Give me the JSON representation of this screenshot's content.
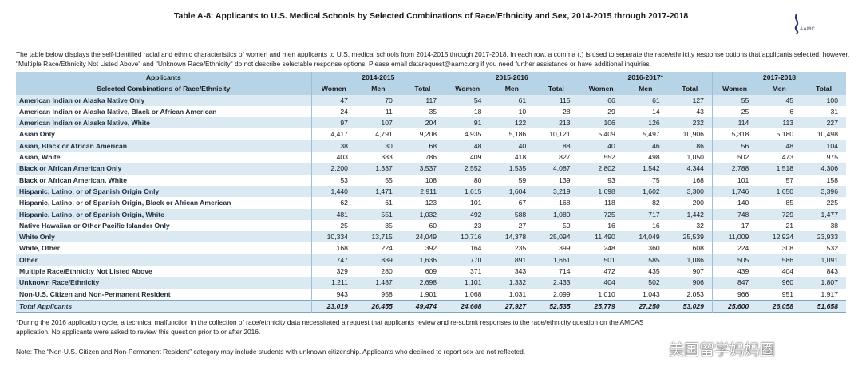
{
  "title": "Table A-8: Applicants to U.S. Medical Schools by Selected Combinations of Race/Ethnicity and Sex, 2014-2015 through 2017-2018",
  "logo": "AAMC",
  "intro": "The table below displays the self-identified racial and ethnic characteristics of women and men applicants to U.S. medical schools from 2014-2015 through 2017-2018. In each row, a comma (,) is used to separate the race/ethnicity response options that applicants selected; however, \"Multiple Race/Ethnicity Not Listed Above\" and \"Unknown Race/Ethnicity\" do not describe selectable response options. Please email datarequest@aamc.org if you need further assistance or have additional inquiries.",
  "table": {
    "header_top": "Applicants",
    "header_label": "Selected Combinations of Race/Ethnicity",
    "years": [
      "2014-2015",
      "2015-2016",
      "2016-2017*",
      "2017-2018"
    ],
    "subheaders": [
      "Women",
      "Men",
      "Total"
    ],
    "rows": [
      [
        "American Indian or Alaska Native Only",
        "47",
        "70",
        "117",
        "54",
        "61",
        "115",
        "66",
        "61",
        "127",
        "55",
        "45",
        "100"
      ],
      [
        "American Indian or Alaska Native, Black or African American",
        "24",
        "11",
        "35",
        "18",
        "10",
        "28",
        "29",
        "14",
        "43",
        "25",
        "6",
        "31"
      ],
      [
        "American Indian or Alaska Native, White",
        "97",
        "107",
        "204",
        "91",
        "122",
        "213",
        "106",
        "126",
        "232",
        "114",
        "113",
        "227"
      ],
      [
        "Asian Only",
        "4,417",
        "4,791",
        "9,208",
        "4,935",
        "5,186",
        "10,121",
        "5,409",
        "5,497",
        "10,906",
        "5,318",
        "5,180",
        "10,498"
      ],
      [
        "Asian, Black or African American",
        "38",
        "30",
        "68",
        "48",
        "40",
        "88",
        "40",
        "46",
        "86",
        "56",
        "48",
        "104"
      ],
      [
        "Asian, White",
        "403",
        "383",
        "786",
        "409",
        "418",
        "827",
        "552",
        "498",
        "1,050",
        "502",
        "473",
        "975"
      ],
      [
        "Black or African American Only",
        "2,200",
        "1,337",
        "3,537",
        "2,552",
        "1,535",
        "4,087",
        "2,802",
        "1,542",
        "4,344",
        "2,788",
        "1,518",
        "4,306"
      ],
      [
        "Black or African American, White",
        "53",
        "55",
        "108",
        "80",
        "59",
        "139",
        "93",
        "75",
        "168",
        "101",
        "57",
        "158"
      ],
      [
        "Hispanic, Latino, or of Spanish Origin Only",
        "1,440",
        "1,471",
        "2,911",
        "1,615",
        "1,604",
        "3,219",
        "1,698",
        "1,602",
        "3,300",
        "1,746",
        "1,650",
        "3,396"
      ],
      [
        "Hispanic, Latino, or of Spanish Origin, Black or African American",
        "62",
        "61",
        "123",
        "101",
        "67",
        "168",
        "118",
        "82",
        "200",
        "140",
        "85",
        "225"
      ],
      [
        "Hispanic, Latino, or of Spanish Origin, White",
        "481",
        "551",
        "1,032",
        "492",
        "588",
        "1,080",
        "725",
        "717",
        "1,442",
        "748",
        "729",
        "1,477"
      ],
      [
        "Native Hawaiian or Other Pacific Islander Only",
        "25",
        "35",
        "60",
        "23",
        "27",
        "50",
        "16",
        "16",
        "32",
        "17",
        "21",
        "38"
      ],
      [
        "White Only",
        "10,334",
        "13,715",
        "24,049",
        "10,716",
        "14,378",
        "25,094",
        "11,490",
        "14,049",
        "25,539",
        "11,009",
        "12,924",
        "23,933"
      ],
      [
        "White, Other",
        "168",
        "224",
        "392",
        "164",
        "235",
        "399",
        "248",
        "360",
        "608",
        "224",
        "308",
        "532"
      ],
      [
        "Other",
        "747",
        "889",
        "1,636",
        "770",
        "891",
        "1,661",
        "501",
        "585",
        "1,086",
        "505",
        "586",
        "1,091"
      ],
      [
        "Multiple Race/Ethnicity Not Listed Above",
        "329",
        "280",
        "609",
        "371",
        "343",
        "714",
        "472",
        "435",
        "907",
        "439",
        "404",
        "843"
      ],
      [
        "Unknown Race/Ethnicity",
        "1,211",
        "1,487",
        "2,698",
        "1,101",
        "1,332",
        "2,433",
        "404",
        "502",
        "906",
        "847",
        "960",
        "1,807"
      ],
      [
        "Non-U.S. Citizen and Non-Permanent Resident",
        "943",
        "958",
        "1,901",
        "1,068",
        "1,031",
        "2,099",
        "1,010",
        "1,043",
        "2,053",
        "966",
        "951",
        "1,917"
      ]
    ],
    "total": [
      "Total Applicants",
      "23,019",
      "26,455",
      "49,474",
      "24,608",
      "27,927",
      "52,535",
      "25,779",
      "27,250",
      "53,029",
      "25,600",
      "26,058",
      "51,658"
    ]
  },
  "footnote": "*During the 2016 application cycle, a technical malfunction in the collection of race/ethnicity data necessitated a request that applicants review and re-submit responses to the race/ethnicity question on the AMCAS application. No applicants were asked to review this question prior to or after 2016.",
  "note": "Note: The “Non-U.S. Citizen and Non-Permanent Resident” category may include students with unknown citizenship. Applicants who declined to report sex are not reflected.",
  "watermark": "美国留学妈妈圈"
}
